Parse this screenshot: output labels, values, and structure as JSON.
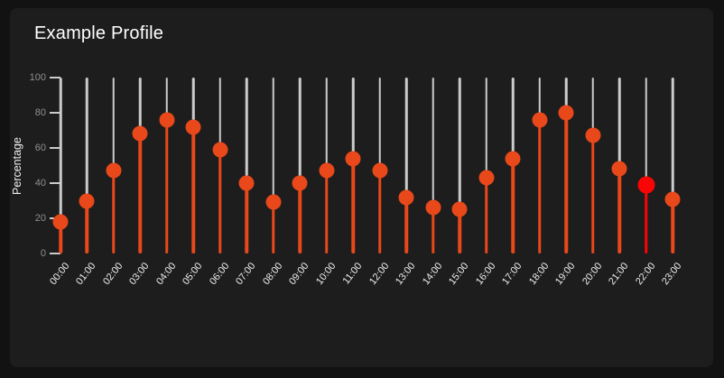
{
  "panel": {
    "title": "Example Profile"
  },
  "colors": {
    "background": "#121212",
    "card": "#1d1d1d",
    "title": "#ffffff",
    "grid_line": "#cbcbcb",
    "accent_orange": "#e8481a",
    "highlight_red": "#fa0505",
    "y_tick_label": "#8f8f8f",
    "axis_label": "#f0f0f0",
    "x_tick_label": "#ededed"
  },
  "chart_data": {
    "type": "scatter",
    "variant": "lollipop",
    "title": "Example Profile",
    "xlabel": "",
    "ylabel": "Percentage",
    "ylim": [
      0,
      100
    ],
    "yticks": [
      0,
      20,
      40,
      60,
      80,
      100
    ],
    "grid": "vertical-category-lines",
    "legend": false,
    "categories": [
      "00:00",
      "01:00",
      "02:00",
      "03:00",
      "04:00",
      "05:00",
      "06:00",
      "07:00",
      "08:00",
      "09:00",
      "10:00",
      "11:00",
      "12:00",
      "13:00",
      "14:00",
      "15:00",
      "16:00",
      "17:00",
      "18:00",
      "19:00",
      "20:00",
      "21:00",
      "22:00",
      "23:00"
    ],
    "values": [
      18,
      30,
      47,
      68,
      76,
      72,
      59,
      40,
      29,
      40,
      47,
      54,
      47,
      32,
      26,
      25,
      43,
      54,
      76,
      80,
      67,
      48,
      39,
      31
    ],
    "highlight_index": 22,
    "highlight_category": "22:00"
  }
}
